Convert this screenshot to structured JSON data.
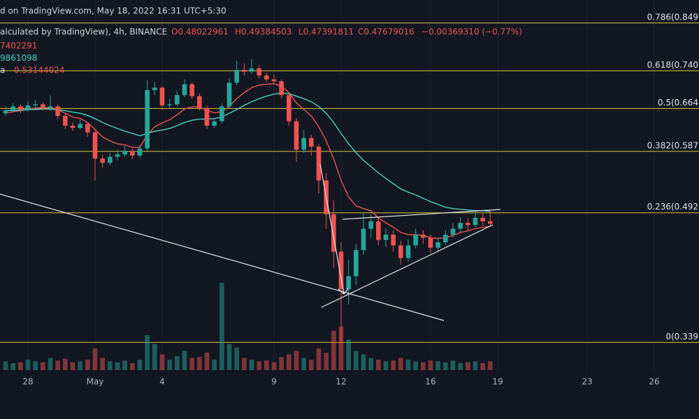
{
  "chart_data": {
    "type": "candlestick",
    "header": {
      "source": "d on TradingView.com, May 18, 2022 16:31 UTC+5:30",
      "symbol": "alculated by TradingView), 4h, BINANCE",
      "open": "O0.48022961",
      "high": "H0.49384503",
      "low": "L0.47391811",
      "close": "C0.47679016",
      "change": "−0.00369310 (−0.77%)"
    },
    "legend": [
      {
        "text": "7402291",
        "color": "#ef5350"
      },
      {
        "text": "9861098",
        "color": "#4dd0c4"
      },
      {
        "prefix": "a",
        "text": "0.53144024",
        "color": "#ef5350"
      }
    ],
    "log_scale": true,
    "ylim": [
      0.272,
      0.907
    ],
    "xlim": [
      -6,
      744
    ],
    "xticks": [
      {
        "value": 24,
        "label": "28"
      },
      {
        "value": 96,
        "label": "May"
      },
      {
        "value": 168,
        "label": "4"
      },
      {
        "value": 288,
        "label": "9"
      },
      {
        "value": 360,
        "label": "12"
      },
      {
        "value": 456,
        "label": "16"
      },
      {
        "value": 528,
        "label": "19"
      },
      {
        "value": 624,
        "label": "23"
      },
      {
        "value": 696,
        "label": "26"
      }
    ],
    "grid": true,
    "up_color": "#26a69a",
    "down_color": "#ef5350",
    "x": [
      0,
      8,
      16,
      24,
      32,
      40,
      48,
      56,
      64,
      72,
      80,
      88,
      96,
      104,
      112,
      120,
      128,
      136,
      144,
      152,
      160,
      168,
      176,
      184,
      192,
      200,
      208,
      216,
      224,
      232,
      240,
      248,
      256,
      264,
      272,
      280,
      288,
      296,
      304,
      312,
      320,
      328,
      336,
      344,
      352,
      360,
      368,
      376,
      384,
      392,
      400,
      408,
      416,
      424,
      432,
      440,
      448,
      456,
      464,
      472,
      480,
      488,
      496,
      504,
      512,
      520
    ],
    "ohlc": [
      [
        0.655,
        0.668,
        0.65,
        0.66
      ],
      [
        0.66,
        0.674,
        0.656,
        0.668
      ],
      [
        0.668,
        0.672,
        0.655,
        0.662
      ],
      [
        0.662,
        0.678,
        0.658,
        0.67
      ],
      [
        0.67,
        0.68,
        0.664,
        0.672
      ],
      [
        0.672,
        0.676,
        0.66,
        0.665
      ],
      [
        0.665,
        0.69,
        0.66,
        0.668
      ],
      [
        0.668,
        0.672,
        0.644,
        0.65
      ],
      [
        0.65,
        0.654,
        0.626,
        0.632
      ],
      [
        0.632,
        0.638,
        0.622,
        0.628
      ],
      [
        0.628,
        0.642,
        0.624,
        0.635
      ],
      [
        0.635,
        0.638,
        0.612,
        0.62
      ],
      [
        0.62,
        0.624,
        0.54,
        0.575
      ],
      [
        0.575,
        0.582,
        0.56,
        0.568
      ],
      [
        0.568,
        0.584,
        0.564,
        0.578
      ],
      [
        0.578,
        0.59,
        0.572,
        0.582
      ],
      [
        0.582,
        0.596,
        0.578,
        0.588
      ],
      [
        0.588,
        0.592,
        0.574,
        0.58
      ],
      [
        0.58,
        0.598,
        0.576,
        0.592
      ],
      [
        0.592,
        0.72,
        0.588,
        0.7
      ],
      [
        0.7,
        0.716,
        0.69,
        0.705
      ],
      [
        0.705,
        0.708,
        0.662,
        0.67
      ],
      [
        0.67,
        0.682,
        0.664,
        0.672
      ],
      [
        0.672,
        0.698,
        0.668,
        0.69
      ],
      [
        0.69,
        0.722,
        0.686,
        0.712
      ],
      [
        0.712,
        0.716,
        0.682,
        0.688
      ],
      [
        0.688,
        0.694,
        0.66,
        0.665
      ],
      [
        0.665,
        0.67,
        0.626,
        0.632
      ],
      [
        0.632,
        0.646,
        0.628,
        0.64
      ],
      [
        0.64,
        0.674,
        0.636,
        0.668
      ],
      [
        0.668,
        0.724,
        0.664,
        0.715
      ],
      [
        0.715,
        0.762,
        0.71,
        0.742
      ],
      [
        0.742,
        0.756,
        0.73,
        0.738
      ],
      [
        0.738,
        0.765,
        0.734,
        0.745
      ],
      [
        0.745,
        0.752,
        0.724,
        0.73
      ],
      [
        0.73,
        0.736,
        0.716,
        0.722
      ],
      [
        0.722,
        0.732,
        0.712,
        0.718
      ],
      [
        0.718,
        0.722,
        0.684,
        0.69
      ],
      [
        0.69,
        0.694,
        0.632,
        0.64
      ],
      [
        0.64,
        0.646,
        0.57,
        0.59
      ],
      [
        0.59,
        0.624,
        0.584,
        0.61
      ],
      [
        0.61,
        0.616,
        0.58,
        0.595
      ],
      [
        0.595,
        0.6,
        0.52,
        0.54
      ],
      [
        0.54,
        0.552,
        0.47,
        0.49
      ],
      [
        0.49,
        0.51,
        0.42,
        0.44
      ],
      [
        0.44,
        0.452,
        0.34,
        0.395
      ],
      [
        0.395,
        0.43,
        0.378,
        0.41
      ],
      [
        0.41,
        0.45,
        0.4,
        0.442
      ],
      [
        0.442,
        0.492,
        0.436,
        0.47
      ],
      [
        0.47,
        0.49,
        0.458,
        0.48
      ],
      [
        0.48,
        0.486,
        0.448,
        0.455
      ],
      [
        0.455,
        0.47,
        0.446,
        0.462
      ],
      [
        0.462,
        0.468,
        0.44,
        0.448
      ],
      [
        0.448,
        0.454,
        0.424,
        0.432
      ],
      [
        0.432,
        0.456,
        0.428,
        0.448
      ],
      [
        0.448,
        0.47,
        0.444,
        0.462
      ],
      [
        0.462,
        0.468,
        0.45,
        0.458
      ],
      [
        0.458,
        0.462,
        0.438,
        0.445
      ],
      [
        0.445,
        0.458,
        0.44,
        0.452
      ],
      [
        0.452,
        0.468,
        0.448,
        0.462
      ],
      [
        0.462,
        0.478,
        0.458,
        0.47
      ],
      [
        0.47,
        0.486,
        0.466,
        0.478
      ],
      [
        0.478,
        0.484,
        0.468,
        0.475
      ],
      [
        0.475,
        0.494,
        0.472,
        0.485
      ],
      [
        0.485,
        0.492,
        0.474,
        0.48
      ],
      [
        0.48023,
        0.49385,
        0.47392,
        0.47679
      ]
    ],
    "volume": [
      10,
      8,
      9,
      12,
      10,
      9,
      14,
      11,
      13,
      9,
      10,
      12,
      25,
      14,
      10,
      9,
      11,
      8,
      12,
      40,
      30,
      18,
      12,
      16,
      22,
      14,
      15,
      20,
      12,
      100,
      30,
      26,
      14,
      12,
      10,
      11,
      9,
      15,
      18,
      22,
      14,
      12,
      25,
      20,
      45,
      50,
      35,
      22,
      18,
      14,
      12,
      10,
      11,
      14,
      12,
      10,
      9,
      11,
      10,
      9,
      11,
      8,
      9,
      10,
      8,
      10
    ],
    "series": [
      {
        "color": "#ef5350",
        "values": [
          0.655,
          0.658,
          0.66,
          0.662,
          0.665,
          0.665,
          0.666,
          0.662,
          0.655,
          0.648,
          0.645,
          0.638,
          0.625,
          0.612,
          0.605,
          0.6,
          0.598,
          0.594,
          0.594,
          0.615,
          0.63,
          0.637,
          0.643,
          0.652,
          0.663,
          0.667,
          0.667,
          0.66,
          0.656,
          0.658,
          0.668,
          0.683,
          0.695,
          0.705,
          0.71,
          0.712,
          0.713,
          0.708,
          0.695,
          0.675,
          0.662,
          0.65,
          0.63,
          0.605,
          0.575,
          0.54,
          0.515,
          0.502,
          0.498,
          0.495,
          0.485,
          0.478,
          0.472,
          0.465,
          0.462,
          0.462,
          0.461,
          0.458,
          0.457,
          0.458,
          0.461,
          0.465,
          0.467,
          0.47,
          0.472,
          0.473
        ]
      },
      {
        "color": "#4dd0c4",
        "values": [
          0.66,
          0.66,
          0.661,
          0.662,
          0.662,
          0.663,
          0.663,
          0.662,
          0.66,
          0.657,
          0.655,
          0.651,
          0.645,
          0.638,
          0.632,
          0.627,
          0.622,
          0.618,
          0.614,
          0.618,
          0.622,
          0.624,
          0.627,
          0.632,
          0.638,
          0.642,
          0.644,
          0.644,
          0.645,
          0.648,
          0.655,
          0.662,
          0.67,
          0.677,
          0.683,
          0.688,
          0.692,
          0.694,
          0.693,
          0.688,
          0.683,
          0.677,
          0.668,
          0.655,
          0.638,
          0.618,
          0.6,
          0.585,
          0.572,
          0.562,
          0.552,
          0.543,
          0.535,
          0.527,
          0.522,
          0.518,
          0.513,
          0.508,
          0.504,
          0.5,
          0.498,
          0.497,
          0.496,
          0.495,
          0.495,
          0.494
        ]
      }
    ],
    "fib_color": "#d8c53a",
    "fib_levels": [
      {
        "label": "0.786(0.849",
        "value": 0.849
      },
      {
        "label": "0.618(0.740",
        "value": 0.74
      },
      {
        "label": "0.5(0.664",
        "value": 0.664
      },
      {
        "label": "0.382(0.587",
        "value": 0.587
      },
      {
        "label": "0.236(0.492",
        "value": 0.492
      },
      {
        "label": "0(0.339",
        "value": 0.339
      }
    ]
  }
}
